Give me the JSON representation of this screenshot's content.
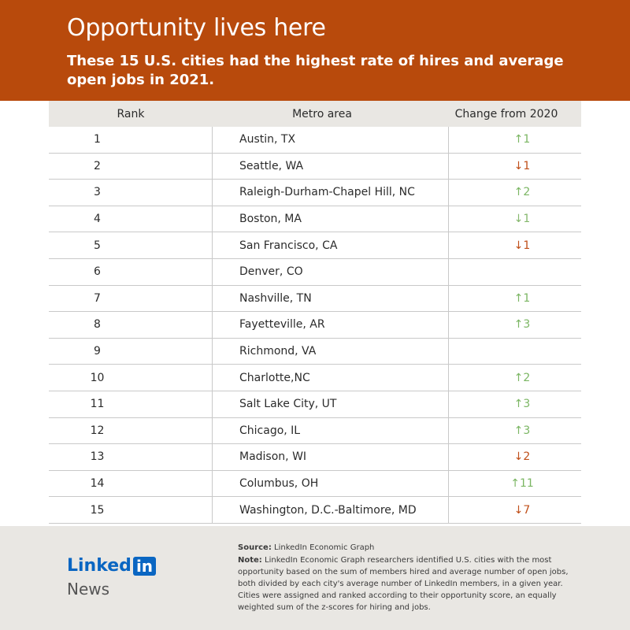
{
  "header": {
    "title": "Opportunity lives here",
    "subtitle": "These 15 U.S. cities had the highest rate of hires and average open jobs in 2021."
  },
  "colors": {
    "header_bg": "#b84a0c",
    "up": "#7bb663",
    "down": "#c0501a"
  },
  "chart_data": {
    "type": "table",
    "columns": [
      "Rank",
      "Metro area",
      "Change from 2020"
    ],
    "rows": [
      {
        "rank": "1",
        "metro": "Austin, TX",
        "change": "↑1",
        "dir": "up"
      },
      {
        "rank": "2",
        "metro": "Seattle, WA",
        "change": "↓1",
        "dir": "down"
      },
      {
        "rank": "3",
        "metro": "Raleigh-Durham-Chapel Hill, NC",
        "change": "↑2",
        "dir": "up"
      },
      {
        "rank": "4",
        "metro": "Boston, MA",
        "change": "↓1",
        "dir": "down-light"
      },
      {
        "rank": "5",
        "metro": "San Francisco, CA",
        "change": "↓1",
        "dir": "down"
      },
      {
        "rank": "6",
        "metro": "Denver, CO",
        "change": "",
        "dir": "none"
      },
      {
        "rank": "7",
        "metro": "Nashville, TN",
        "change": "↑1",
        "dir": "up"
      },
      {
        "rank": "8",
        "metro": "Fayetteville, AR",
        "change": "↑3",
        "dir": "up"
      },
      {
        "rank": "9",
        "metro": "Richmond, VA",
        "change": "",
        "dir": "none"
      },
      {
        "rank": "10",
        "metro": "Charlotte,NC",
        "change": "↑2",
        "dir": "up"
      },
      {
        "rank": "11",
        "metro": "Salt Lake City, UT",
        "change": "↑3",
        "dir": "up"
      },
      {
        "rank": "12",
        "metro": "Chicago, IL",
        "change": "↑3",
        "dir": "up"
      },
      {
        "rank": "13",
        "metro": "Madison, WI",
        "change": "↓2",
        "dir": "down"
      },
      {
        "rank": "14",
        "metro": "Columbus, OH",
        "change": "↑11",
        "dir": "up"
      },
      {
        "rank": "15",
        "metro": "Washington, D.C.-Baltimore, MD",
        "change": "↓7",
        "dir": "down"
      }
    ]
  },
  "footer": {
    "logo_text": "Linked",
    "logo_in": "in",
    "logo_news": "News",
    "source_label": "Source:",
    "source_text": "LinkedIn Economic Graph",
    "note_label": "Note:",
    "note_text": "LinkedIn Economic Graph researchers identified U.S. cities with the most opportunity based on the sum of members hired and average number of open jobs, both divided by each city's average number of LinkedIn members, in a given year. Cities were assigned and ranked according to their opportunity score, an equally weighted sum of the z-scores for hiring and jobs."
  }
}
